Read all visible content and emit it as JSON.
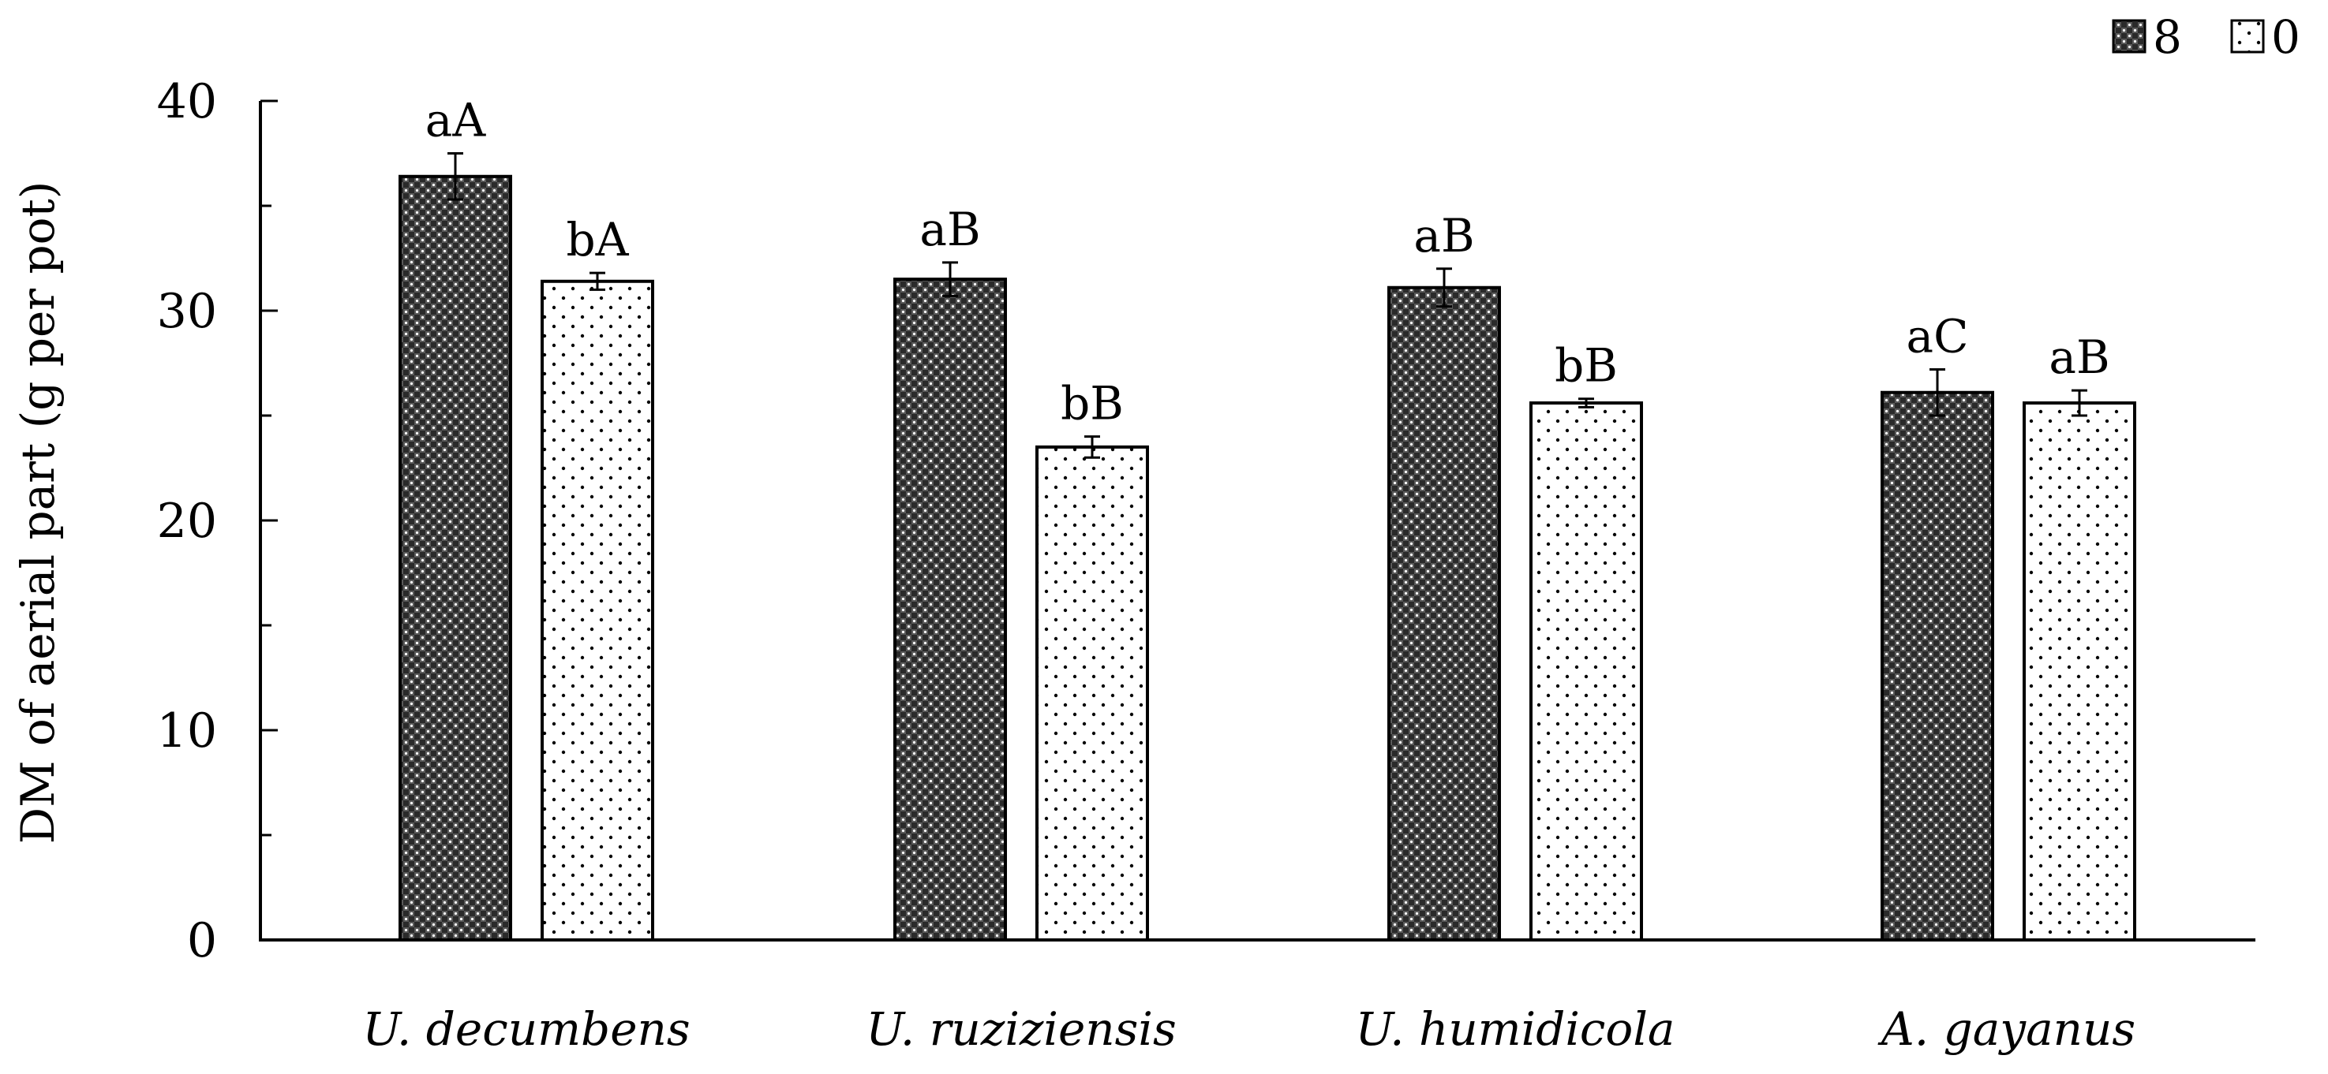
{
  "chart_data": {
    "type": "bar",
    "title": "",
    "xlabel": "",
    "ylabel": "DM of aerial part (g per pot)",
    "ylim": [
      0,
      40
    ],
    "yticks": [
      "0",
      "10",
      "20",
      "30",
      "40"
    ],
    "categories": [
      "U. decumbens",
      "U. ruziziensis",
      "U. humidicola",
      "A. gayanus"
    ],
    "legend_position": "top-right",
    "series": [
      {
        "name": "8",
        "pattern": "checkered-dark",
        "values": [
          36.4,
          31.5,
          31.1,
          26.1
        ],
        "errors": [
          1.1,
          0.8,
          0.9,
          1.1
        ],
        "labels": [
          "aA",
          "aB",
          "aB",
          "aC"
        ]
      },
      {
        "name": "0",
        "pattern": "dotted-light",
        "values": [
          31.4,
          23.5,
          25.6,
          25.6
        ],
        "errors": [
          0.4,
          0.5,
          0.2,
          0.6
        ],
        "labels": [
          "bA",
          "bB",
          "bB",
          "aB"
        ]
      }
    ]
  }
}
